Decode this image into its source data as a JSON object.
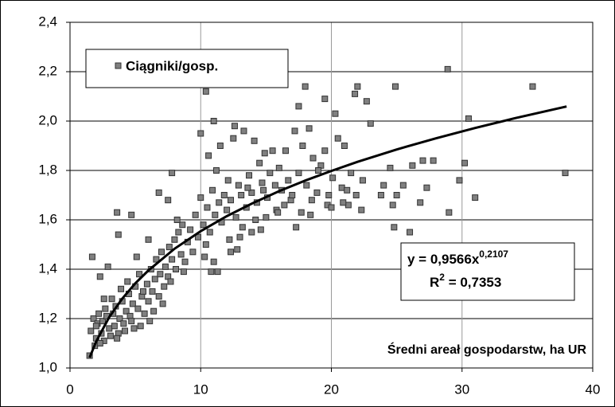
{
  "chart_data": {
    "type": "scatter",
    "xlim": [
      0,
      40
    ],
    "xticks": [
      0,
      10,
      20,
      30,
      40
    ],
    "ylim": [
      1.0,
      2.4
    ],
    "yticks": [
      {
        "value": 1.0,
        "label": "1,0"
      },
      {
        "value": 1.2,
        "label": "1,2"
      },
      {
        "value": 1.4,
        "label": "1,4"
      },
      {
        "value": 1.6,
        "label": "1,6"
      },
      {
        "value": 1.8,
        "label": "1,8"
      },
      {
        "value": 2.0,
        "label": "2,0"
      },
      {
        "value": 2.2,
        "label": "2,2"
      },
      {
        "value": 2.4,
        "label": "2,4"
      }
    ],
    "grid": true,
    "legend": "upper left",
    "x_label": "Średni areał gospodarstw, ha UR",
    "equation": {
      "base": "y = 0,9566x",
      "exponent": "0,2107"
    },
    "r_squared": {
      "base": "R",
      "exponent": "2",
      "rest": " = 0,7353"
    },
    "series": [
      {
        "name": "Ciągniki/gosp.",
        "color": "#808080",
        "x": [
          28.9,
          35.4,
          37.9,
          30.5,
          30.2,
          31.0,
          29.0,
          26.0,
          24.8,
          24.9,
          22.0,
          21.8,
          22.7,
          23.0,
          21.0,
          20.3,
          19.5,
          18.0,
          17.5,
          10.4,
          11.0,
          10.0,
          1.7,
          2.3,
          2.9,
          3.6,
          4.7,
          3.7,
          6.8,
          7.5,
          7.8,
          6.0,
          10.8,
          11.3,
          27.0,
          27.8,
          26.2,
          25.5,
          24.5,
          24.0,
          25.0,
          27.3,
          26.8,
          29.8,
          24.7,
          22.3,
          23.8,
          21.3,
          20.9,
          19.7,
          18.4,
          17.7,
          16.9,
          15.8,
          15.0,
          14.6,
          13.9,
          13.0,
          12.3,
          12.8,
          6.1,
          5.4,
          4.9,
          1.6,
          1.8,
          2.0,
          2.1,
          2.2,
          2.4,
          2.5,
          2.6,
          2.8,
          3.0,
          3.1,
          3.3,
          3.4,
          3.5,
          3.7,
          3.8,
          4.0,
          4.1,
          4.3,
          4.5,
          4.6,
          4.8,
          5.0,
          1.9,
          2.3,
          2.7,
          3.2,
          3.6,
          4.2,
          4.7,
          1.5,
          2.0,
          2.6,
          3.9,
          4.4,
          5.2,
          5.3,
          5.5,
          5.7,
          5.9,
          6.0,
          6.2,
          6.3,
          6.5,
          6.6,
          6.8,
          6.9,
          7.0,
          7.2,
          7.3,
          7.5,
          7.6,
          7.8,
          8.0,
          8.1,
          8.3,
          8.5,
          8.6,
          8.8,
          9.0,
          5.1,
          5.6,
          6.4,
          7.1,
          7.7,
          8.2,
          8.7,
          9.2,
          9.4,
          9.6,
          9.8,
          10.0,
          10.2,
          10.3,
          10.5,
          10.7,
          10.9,
          11.1,
          11.2,
          11.4,
          11.6,
          11.8,
          12.0,
          12.1,
          12.3,
          12.5,
          12.7,
          12.9,
          13.1,
          13.3,
          13.5,
          13.7,
          13.9,
          14.1,
          14.3,
          14.5,
          14.7,
          14.9,
          15.1,
          15.3,
          10.4,
          10.6,
          11.0,
          11.5,
          12.2,
          12.6,
          13.2,
          13.6,
          14.2,
          14.8,
          15.5,
          15.7,
          16.0,
          16.2,
          16.5,
          16.7,
          17.0,
          17.2,
          17.5,
          17.8,
          18.1,
          18.3,
          18.6,
          18.9,
          19.2,
          19.5,
          19.8,
          20.1,
          20.5,
          20.8,
          21.2,
          21.5,
          21.9,
          22.4,
          15.9,
          16.4,
          17.3,
          18.5,
          19.0,
          20.0
        ],
        "values": [
          2.21,
          2.14,
          1.79,
          2.01,
          1.83,
          1.69,
          1.63,
          1.55,
          1.57,
          2.14,
          2.14,
          2.11,
          2.08,
          1.99,
          1.9,
          2.03,
          2.09,
          2.14,
          2.06,
          2.12,
          2.0,
          1.95,
          1.45,
          1.37,
          1.41,
          1.63,
          1.62,
          1.54,
          1.71,
          1.68,
          1.79,
          1.52,
          1.39,
          1.39,
          1.84,
          1.84,
          1.82,
          1.74,
          1.81,
          1.74,
          1.7,
          1.73,
          1.67,
          1.76,
          1.66,
          1.64,
          1.7,
          1.66,
          1.67,
          1.66,
          1.62,
          1.63,
          1.68,
          1.64,
          1.61,
          1.56,
          1.55,
          1.53,
          1.47,
          1.48,
          1.19,
          1.17,
          1.16,
          1.15,
          1.2,
          1.12,
          1.18,
          1.22,
          1.14,
          1.19,
          1.11,
          1.21,
          1.16,
          1.13,
          1.22,
          1.17,
          1.25,
          1.14,
          1.2,
          1.27,
          1.18,
          1.23,
          1.3,
          1.21,
          1.26,
          1.33,
          1.09,
          1.1,
          1.24,
          1.28,
          1.12,
          1.15,
          1.19,
          1.05,
          1.17,
          1.28,
          1.32,
          1.35,
          1.24,
          1.38,
          1.29,
          1.22,
          1.34,
          1.27,
          1.4,
          1.31,
          1.36,
          1.44,
          1.29,
          1.38,
          1.47,
          1.33,
          1.41,
          1.37,
          1.49,
          1.44,
          1.52,
          1.4,
          1.55,
          1.46,
          1.58,
          1.43,
          1.51,
          1.45,
          1.31,
          1.23,
          1.26,
          1.35,
          1.6,
          1.39,
          1.56,
          1.47,
          1.62,
          1.53,
          1.69,
          1.58,
          1.45,
          1.65,
          1.55,
          1.72,
          1.62,
          1.8,
          1.67,
          1.59,
          1.7,
          1.64,
          1.76,
          1.68,
          1.93,
          1.61,
          1.74,
          1.7,
          1.96,
          1.65,
          1.78,
          1.71,
          1.92,
          1.67,
          1.83,
          1.75,
          1.87,
          1.69,
          1.79,
          1.5,
          1.86,
          1.43,
          1.9,
          1.52,
          1.98,
          1.57,
          1.73,
          1.6,
          1.72,
          1.88,
          1.74,
          1.81,
          1.72,
          1.88,
          1.76,
          1.7,
          1.96,
          1.79,
          1.9,
          1.74,
          1.97,
          1.85,
          1.71,
          1.82,
          1.88,
          1.7,
          1.77,
          1.93,
          1.73,
          1.72,
          1.79,
          1.7,
          1.76,
          1.63,
          1.66,
          1.57,
          1.68,
          1.8,
          1.65
        ]
      }
    ],
    "trendline": {
      "color": "#000000",
      "x": [
        1.5,
        2,
        3,
        4,
        5,
        6,
        8,
        10,
        12,
        14,
        16,
        18,
        20,
        22,
        25,
        28,
        31,
        34,
        38
      ],
      "values": [
        1.042,
        1.107,
        1.206,
        1.281,
        1.343,
        1.395,
        1.483,
        1.554,
        1.615,
        1.668,
        1.716,
        1.759,
        1.798,
        1.835,
        1.885,
        1.93,
        1.972,
        2.011,
        2.059
      ]
    }
  }
}
